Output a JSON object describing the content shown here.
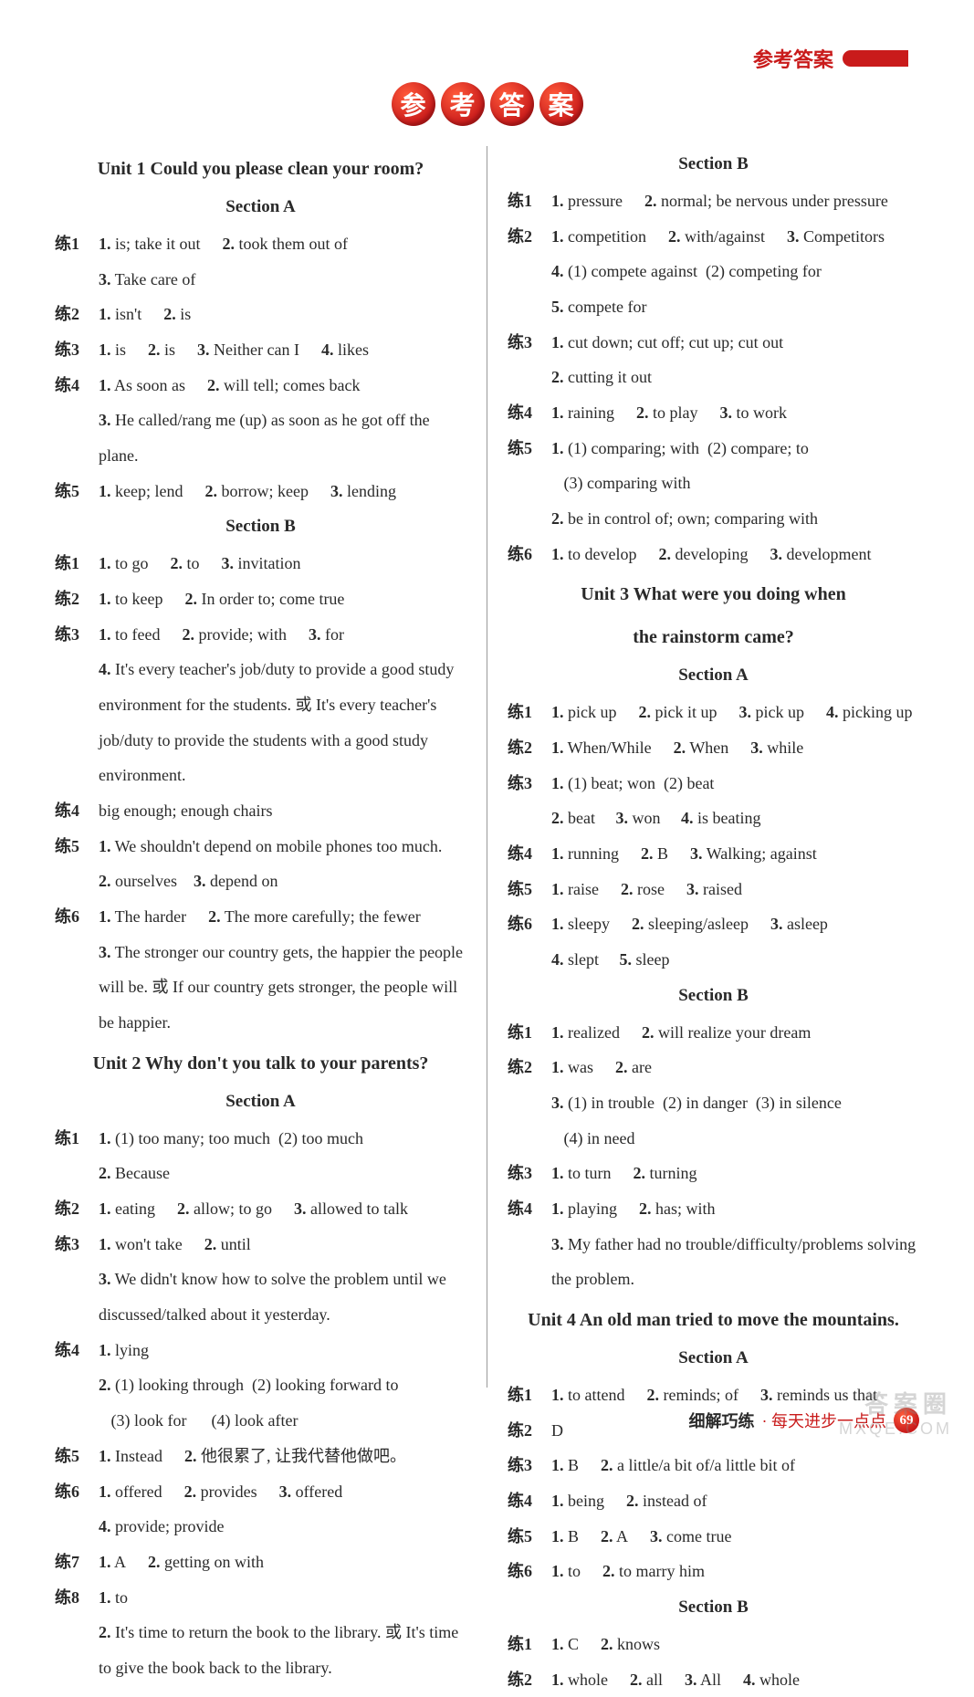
{
  "header": {
    "label": "参考答案"
  },
  "title_chars": [
    "参",
    "考",
    "答",
    "案"
  ],
  "left": [
    {
      "type": "unit",
      "text": "Unit 1 Could you please clean your room?"
    },
    {
      "type": "section",
      "text": "Section A"
    },
    {
      "type": "row",
      "lian": "练1",
      "items": [
        "<b>1.</b> is; take it out",
        "<b>2.</b> took them out of",
        "<b>3.</b> Take care of"
      ]
    },
    {
      "type": "row",
      "lian": "练2",
      "items": [
        "<b>1.</b> isn't",
        "<b>2.</b> is"
      ]
    },
    {
      "type": "row",
      "lian": "练3",
      "items": [
        "<b>1.</b> is",
        "<b>2.</b> is",
        "<b>3.</b> Neither can I",
        "<b>4.</b> likes"
      ]
    },
    {
      "type": "row",
      "lian": "练4",
      "items": [
        "<b>1.</b> As soon as",
        "<b>2.</b> will tell; comes back"
      ]
    },
    {
      "type": "cont",
      "text": "<b>3.</b> He called/rang me (up) as soon as he got off the plane."
    },
    {
      "type": "row",
      "lian": "练5",
      "items": [
        "<b>1.</b> keep; lend",
        "<b>2.</b> borrow; keep",
        "<b>3.</b> lending"
      ]
    },
    {
      "type": "section",
      "text": "Section B"
    },
    {
      "type": "row",
      "lian": "练1",
      "items": [
        "<b>1.</b> to go",
        "<b>2.</b> to",
        "<b>3.</b> invitation"
      ]
    },
    {
      "type": "row",
      "lian": "练2",
      "items": [
        "<b>1.</b> to keep",
        "<b>2.</b> In order to; come true"
      ]
    },
    {
      "type": "row",
      "lian": "练3",
      "items": [
        "<b>1.</b> to feed",
        "<b>2.</b> provide; with",
        "<b>3.</b> for"
      ]
    },
    {
      "type": "cont",
      "text": "<b>4.</b> It's every teacher's job/duty to provide a good study environment for the students. 或 It's every teacher's job/duty to provide the students with a good study environment."
    },
    {
      "type": "row",
      "lian": "练4",
      "items": [
        "big enough; enough chairs"
      ]
    },
    {
      "type": "row",
      "lian": "练5",
      "items": [
        "<b>1.</b> We shouldn't depend on mobile phones too much."
      ]
    },
    {
      "type": "cont",
      "text": "<b>2.</b> ourselves&nbsp;&nbsp;&nbsp;&nbsp;<b>3.</b> depend on"
    },
    {
      "type": "row",
      "lian": "练6",
      "items": [
        "<b>1.</b> The harder",
        "<b>2.</b> The more carefully; the fewer"
      ]
    },
    {
      "type": "cont",
      "text": "<b>3.</b> The stronger our country gets, the happier the people will be. 或 If our country gets stronger, the people will be happier."
    },
    {
      "type": "unit",
      "text": "Unit 2 Why don't you talk to your parents?"
    },
    {
      "type": "section",
      "text": "Section A"
    },
    {
      "type": "row",
      "lian": "练1",
      "items": [
        "<b>1.</b> (1) too many; too much&nbsp;&nbsp;(2) too much"
      ]
    },
    {
      "type": "cont",
      "text": "<b>2.</b> Because"
    },
    {
      "type": "row",
      "lian": "练2",
      "items": [
        "<b>1.</b> eating",
        "<b>2.</b> allow; to go",
        "<b>3.</b> allowed to talk"
      ]
    },
    {
      "type": "row",
      "lian": "练3",
      "items": [
        "<b>1.</b> won't take",
        "<b>2.</b> until"
      ]
    },
    {
      "type": "cont",
      "text": "<b>3.</b> We didn't know how to solve the problem until we discussed/talked about it yesterday."
    },
    {
      "type": "row",
      "lian": "练4",
      "items": [
        "<b>1.</b> lying"
      ]
    },
    {
      "type": "cont",
      "text": "<b>2.</b> (1) looking through&nbsp;&nbsp;(2) looking forward to"
    },
    {
      "type": "cont",
      "text": "&nbsp;&nbsp;&nbsp;(3) look for&nbsp;&nbsp;&nbsp;&nbsp;&nbsp;&nbsp;(4) look after"
    },
    {
      "type": "row",
      "lian": "练5",
      "items": [
        "<b>1.</b> Instead",
        "<b>2.</b> 他很累了, 让我代替他做吧。"
      ]
    },
    {
      "type": "row",
      "lian": "练6",
      "items": [
        "<b>1.</b> offered",
        "<b>2.</b> provides",
        "<b>3.</b> offered",
        "<b>4.</b> provide; provide"
      ]
    },
    {
      "type": "row",
      "lian": "练7",
      "items": [
        "<b>1.</b> A",
        "<b>2.</b> getting on with"
      ]
    },
    {
      "type": "row",
      "lian": "练8",
      "items": [
        "<b>1.</b> to"
      ]
    },
    {
      "type": "cont",
      "text": "<b>2.</b> It's time to return the book to the library. 或 It's time to give the book back to the library."
    }
  ],
  "right": [
    {
      "type": "section",
      "text": "Section B"
    },
    {
      "type": "row",
      "lian": "练1",
      "items": [
        "<b>1.</b> pressure",
        "<b>2.</b> normal; be nervous under pressure"
      ]
    },
    {
      "type": "row",
      "lian": "练2",
      "items": [
        "<b>1.</b> competition",
        "<b>2.</b> with/against",
        "<b>3.</b> Competitors"
      ]
    },
    {
      "type": "cont",
      "text": "<b>4.</b> (1) compete against&nbsp;&nbsp;(2) competing for"
    },
    {
      "type": "cont",
      "text": "<b>5.</b> compete for"
    },
    {
      "type": "row",
      "lian": "练3",
      "items": [
        "<b>1.</b> cut down; cut off; cut up; cut out"
      ]
    },
    {
      "type": "cont",
      "text": "<b>2.</b> cutting it out"
    },
    {
      "type": "row",
      "lian": "练4",
      "items": [
        "<b>1.</b> raining",
        "<b>2.</b> to play",
        "<b>3.</b> to work"
      ]
    },
    {
      "type": "row",
      "lian": "练5",
      "items": [
        "<b>1.</b> (1) comparing; with&nbsp;&nbsp;(2) compare; to"
      ]
    },
    {
      "type": "cont",
      "text": "&nbsp;&nbsp;&nbsp;(3) comparing with"
    },
    {
      "type": "cont",
      "text": "<b>2.</b> be in control of; own; comparing with"
    },
    {
      "type": "row",
      "lian": "练6",
      "items": [
        "<b>1.</b> to develop",
        "<b>2.</b> developing",
        "<b>3.</b> development"
      ]
    },
    {
      "type": "unit",
      "text": "Unit 3 What were you doing when"
    },
    {
      "type": "unit",
      "text": "the rainstorm came?"
    },
    {
      "type": "section",
      "text": "Section A"
    },
    {
      "type": "row",
      "lian": "练1",
      "items": [
        "<b>1.</b> pick up",
        "<b>2.</b> pick it up",
        "<b>3.</b> pick up",
        "<b>4.</b> picking up"
      ]
    },
    {
      "type": "row",
      "lian": "练2",
      "items": [
        "<b>1.</b> When/While",
        "<b>2.</b> When",
        "<b>3.</b> while"
      ]
    },
    {
      "type": "row",
      "lian": "练3",
      "items": [
        "<b>1.</b> (1) beat; won&nbsp;&nbsp;(2) beat"
      ]
    },
    {
      "type": "cont",
      "text": "<b>2.</b> beat&nbsp;&nbsp;&nbsp;&nbsp;&nbsp;<b>3.</b> won&nbsp;&nbsp;&nbsp;&nbsp;&nbsp;<b>4.</b> is beating"
    },
    {
      "type": "row",
      "lian": "练4",
      "items": [
        "<b>1.</b> running",
        "<b>2.</b> B",
        "<b>3.</b> Walking; against"
      ]
    },
    {
      "type": "row",
      "lian": "练5",
      "items": [
        "<b>1.</b> raise",
        "<b>2.</b> rose",
        "<b>3.</b> raised"
      ]
    },
    {
      "type": "row",
      "lian": "练6",
      "items": [
        "<b>1.</b> sleepy",
        "<b>2.</b> sleeping/asleep",
        "<b>3.</b> asleep"
      ]
    },
    {
      "type": "cont",
      "text": "<b>4.</b> slept&nbsp;&nbsp;&nbsp;&nbsp;&nbsp;<b>5.</b> sleep"
    },
    {
      "type": "section",
      "text": "Section B"
    },
    {
      "type": "row",
      "lian": "练1",
      "items": [
        "<b>1.</b> realized",
        "<b>2.</b> will realize your dream"
      ]
    },
    {
      "type": "row",
      "lian": "练2",
      "items": [
        "<b>1.</b> was",
        "<b>2.</b> are"
      ]
    },
    {
      "type": "cont",
      "text": "<b>3.</b> (1) in trouble&nbsp;&nbsp;(2) in danger&nbsp;&nbsp;(3) in silence"
    },
    {
      "type": "cont",
      "text": "&nbsp;&nbsp;&nbsp;(4) in need"
    },
    {
      "type": "row",
      "lian": "练3",
      "items": [
        "<b>1.</b> to turn",
        "<b>2.</b> turning"
      ]
    },
    {
      "type": "row",
      "lian": "练4",
      "items": [
        "<b>1.</b> playing",
        "<b>2.</b> has; with"
      ]
    },
    {
      "type": "cont",
      "text": "<b>3.</b> My father had no trouble/difficulty/problems solving the problem."
    },
    {
      "type": "unit",
      "text": "Unit 4 An old man tried to move the mountains."
    },
    {
      "type": "section",
      "text": "Section A"
    },
    {
      "type": "row",
      "lian": "练1",
      "items": [
        "<b>1.</b> to attend",
        "<b>2.</b> reminds; of",
        "<b>3.</b> reminds us that"
      ]
    },
    {
      "type": "row",
      "lian": "练2",
      "items": [
        "D"
      ]
    },
    {
      "type": "row",
      "lian": "练3",
      "items": [
        "<b>1.</b> B",
        "<b>2.</b> a little/a bit of/a little bit of"
      ]
    },
    {
      "type": "row",
      "lian": "练4",
      "items": [
        "<b>1.</b> being",
        "<b>2.</b> instead of"
      ]
    },
    {
      "type": "row",
      "lian": "练5",
      "items": [
        "<b>1.</b> B",
        "<b>2.</b> A",
        "<b>3.</b> come true"
      ]
    },
    {
      "type": "row",
      "lian": "练6",
      "items": [
        "<b>1.</b> to",
        "<b>2.</b> to marry him"
      ]
    },
    {
      "type": "section",
      "text": "Section B"
    },
    {
      "type": "row",
      "lian": "练1",
      "items": [
        "<b>1.</b> C",
        "<b>2.</b> knows"
      ]
    },
    {
      "type": "row",
      "lian": "练2",
      "items": [
        "<b>1.</b> whole",
        "<b>2.</b> all",
        "<b>3.</b> All",
        "<b>4.</b> whole"
      ]
    }
  ],
  "footer": {
    "t1": "细解巧练",
    "t2": "· 每天进步一点点",
    "page": "69"
  },
  "watermark": {
    "line1": "答案圈",
    "line2": "MXQE.COM"
  }
}
